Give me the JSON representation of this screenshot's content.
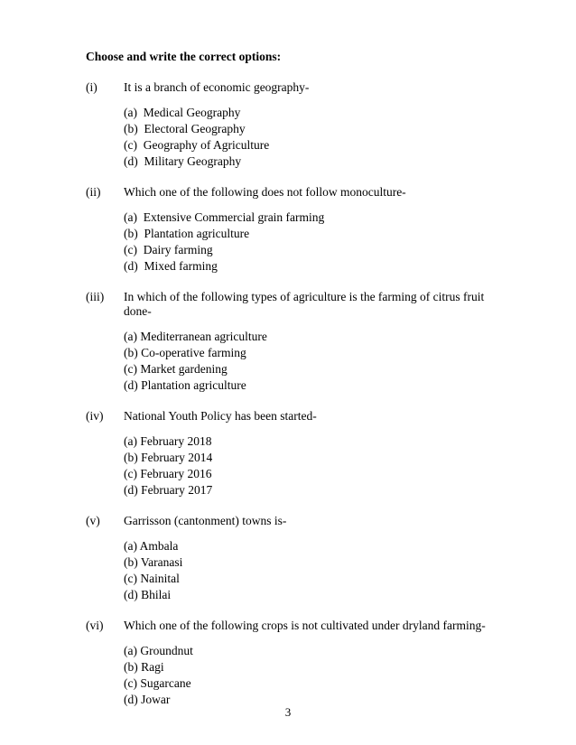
{
  "instruction": "Choose and write the correct options:",
  "questions": [
    {
      "num": "(i)",
      "text": "It is a branch of economic geography-",
      "optStyle": "paren-space",
      "options": [
        {
          "label": "(a)",
          "text": "Medical Geography"
        },
        {
          "label": "(b)",
          "text": "Electoral Geography"
        },
        {
          "label": "(c)",
          "text": "Geography of Agriculture"
        },
        {
          "label": "(d)",
          "text": "Military Geography"
        }
      ]
    },
    {
      "num": "(ii)",
      "text": "Which one of the following does not follow monoculture-",
      "optStyle": "paren-space",
      "options": [
        {
          "label": "(a)",
          "text": "Extensive Commercial grain farming"
        },
        {
          "label": "(b)",
          "text": "Plantation agriculture"
        },
        {
          "label": "(c)",
          "text": "Dairy farming"
        },
        {
          "label": "(d)",
          "text": "Mixed farming"
        }
      ]
    },
    {
      "num": "(iii)",
      "text": "In which of the following types of agriculture is the farming of citrus fruit done-",
      "optStyle": "tight",
      "options": [
        {
          "label": "(a)",
          "text": "Mediterranean agriculture"
        },
        {
          "label": "(b)",
          "text": "Co-operative farming"
        },
        {
          "label": "(c)",
          "text": "Market gardening"
        },
        {
          "label": "(d)",
          "text": "Plantation agriculture"
        }
      ]
    },
    {
      "num": "(iv)",
      "text": "National Youth Policy has been started-",
      "optStyle": "tight",
      "options": [
        {
          "label": "(a)",
          "text": "February 2018"
        },
        {
          "label": "(b)",
          "text": "February 2014"
        },
        {
          "label": "(c)",
          "text": "February 2016"
        },
        {
          "label": "(d)",
          "text": "February 2017"
        }
      ]
    },
    {
      "num": "(v)",
      "text": "Garrisson (cantonment) towns is-",
      "optStyle": "tight",
      "options": [
        {
          "label": "(a)",
          "text": "Ambala"
        },
        {
          "label": "(b)",
          "text": "Varanasi"
        },
        {
          "label": "(c)",
          "text": "Nainital"
        },
        {
          "label": "(d)",
          "text": "Bhilai"
        }
      ]
    },
    {
      "num": "(vi)",
      "text": "Which one of the following crops is not cultivated under dryland farming-",
      "optStyle": "tight",
      "options": [
        {
          "label": "(a)",
          "text": "Groundnut"
        },
        {
          "label": "(b)",
          "text": "Ragi"
        },
        {
          "label": "(c)",
          "text": "Sugarcane"
        },
        {
          "label": "(d)",
          "text": "Jowar"
        }
      ]
    }
  ],
  "pageNumber": "3"
}
